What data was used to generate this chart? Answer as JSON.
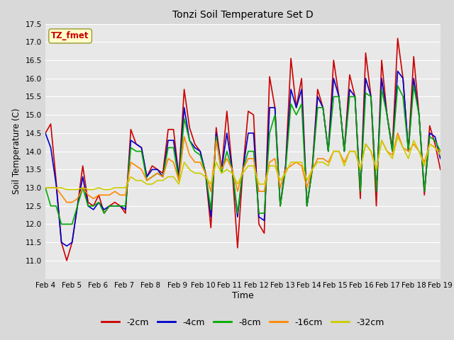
{
  "title": "Tonzi Soil Temperature Set D",
  "xlabel": "Time",
  "ylabel": "Soil Temperature (C)",
  "ylim": [
    10.5,
    17.5
  ],
  "yticks": [
    11.0,
    11.5,
    12.0,
    12.5,
    13.0,
    13.5,
    14.0,
    14.5,
    15.0,
    15.5,
    16.0,
    16.5,
    17.0,
    17.5
  ],
  "legend_labels": [
    "-2cm",
    "-4cm",
    "-8cm",
    "-16cm",
    "-32cm"
  ],
  "legend_colors": [
    "#cc0000",
    "#0000cc",
    "#00aa00",
    "#ff8800",
    "#cccc00"
  ],
  "annotation_text": "TZ_fmet",
  "annotation_color": "#cc0000",
  "annotation_bg": "#ffffcc",
  "fig_bg": "#d9d9d9",
  "plot_bg": "#e8e8e8",
  "xtick_labels": [
    "Feb 4",
    "Feb 5",
    "Feb 6",
    "Feb 7",
    "Feb 8",
    "Feb 9",
    "Feb 10",
    "Feb 11",
    "Feb 12",
    "Feb 13",
    "Feb 14",
    "Feb 15",
    "Feb 16",
    "Feb 17",
    "Feb 18",
    "Feb 19"
  ],
  "series": {
    "cm2": [
      14.5,
      14.75,
      13.2,
      11.5,
      11.0,
      11.5,
      12.5,
      13.6,
      12.6,
      12.5,
      12.8,
      12.3,
      12.5,
      12.6,
      12.5,
      12.3,
      14.6,
      14.2,
      14.1,
      13.3,
      13.6,
      13.5,
      13.4,
      14.6,
      14.6,
      13.3,
      15.7,
      14.65,
      14.2,
      14.0,
      13.4,
      11.9,
      14.65,
      13.5,
      15.1,
      13.5,
      11.35,
      13.5,
      15.1,
      15.0,
      12.0,
      11.75,
      16.05,
      15.2,
      12.5,
      13.6,
      16.55,
      15.2,
      16.0,
      12.5,
      13.55,
      15.7,
      15.2,
      14.0,
      16.5,
      15.5,
      14.0,
      16.1,
      15.5,
      12.7,
      16.7,
      15.5,
      12.5,
      16.5,
      15.0,
      14.1,
      17.1,
      16.0,
      14.0,
      16.6,
      15.0,
      12.8,
      14.7,
      14.2,
      13.5
    ],
    "cm4": [
      14.5,
      14.1,
      13.1,
      11.5,
      11.4,
      11.5,
      12.5,
      13.3,
      12.5,
      12.4,
      12.6,
      12.4,
      12.5,
      12.5,
      12.5,
      12.4,
      14.3,
      14.2,
      14.1,
      13.3,
      13.5,
      13.5,
      13.3,
      14.3,
      14.3,
      13.3,
      15.2,
      14.3,
      14.1,
      14.0,
      13.4,
      12.2,
      14.5,
      13.5,
      14.5,
      13.5,
      12.2,
      13.5,
      14.5,
      14.5,
      12.2,
      12.1,
      15.2,
      15.2,
      12.5,
      13.6,
      15.7,
      15.2,
      15.7,
      12.5,
      13.5,
      15.5,
      15.2,
      14.0,
      16.0,
      15.5,
      14.0,
      15.7,
      15.5,
      12.9,
      16.0,
      15.5,
      12.9,
      16.0,
      15.0,
      14.0,
      16.2,
      16.0,
      14.0,
      16.0,
      15.0,
      12.9,
      14.5,
      14.4,
      13.8
    ],
    "cm8": [
      13.0,
      12.5,
      12.5,
      12.0,
      12.0,
      12.0,
      12.5,
      13.0,
      12.5,
      12.5,
      12.6,
      12.3,
      12.5,
      12.5,
      12.5,
      12.5,
      14.1,
      14.0,
      14.0,
      13.2,
      13.3,
      13.4,
      13.3,
      14.1,
      14.1,
      13.2,
      14.9,
      14.3,
      14.0,
      13.9,
      13.4,
      12.4,
      14.4,
      13.4,
      14.0,
      13.5,
      12.3,
      13.5,
      14.0,
      14.0,
      12.3,
      12.3,
      14.5,
      15.0,
      12.5,
      13.5,
      15.3,
      15.0,
      15.3,
      12.5,
      13.5,
      15.2,
      15.2,
      14.0,
      15.5,
      15.5,
      14.0,
      15.5,
      15.5,
      12.9,
      15.6,
      15.5,
      12.9,
      15.7,
      15.0,
      14.0,
      15.8,
      15.5,
      14.0,
      15.8,
      15.0,
      12.9,
      14.4,
      14.3,
      14.0
    ],
    "cm16": [
      13.0,
      13.0,
      13.0,
      12.8,
      12.6,
      12.6,
      12.7,
      13.0,
      12.8,
      12.7,
      12.8,
      12.8,
      12.8,
      12.9,
      12.8,
      12.8,
      13.7,
      13.6,
      13.5,
      13.2,
      13.3,
      13.4,
      13.3,
      13.8,
      13.7,
      13.2,
      14.4,
      13.9,
      13.7,
      13.7,
      13.4,
      12.9,
      14.3,
      13.5,
      13.8,
      13.5,
      12.9,
      13.5,
      13.8,
      13.8,
      12.9,
      12.9,
      13.7,
      13.8,
      13.0,
      13.5,
      13.6,
      13.7,
      13.6,
      13.0,
      13.5,
      13.8,
      13.8,
      13.7,
      14.0,
      14.0,
      13.7,
      14.0,
      14.0,
      13.5,
      14.2,
      14.0,
      13.5,
      14.3,
      14.0,
      13.9,
      14.5,
      14.1,
      14.0,
      14.2,
      14.0,
      13.7,
      14.2,
      14.1,
      14.0
    ],
    "cm32": [
      13.0,
      13.0,
      13.0,
      13.0,
      12.95,
      12.95,
      12.95,
      13.0,
      12.95,
      12.95,
      13.0,
      12.95,
      12.95,
      13.0,
      13.0,
      13.0,
      13.3,
      13.2,
      13.2,
      13.1,
      13.1,
      13.2,
      13.2,
      13.3,
      13.3,
      13.1,
      13.7,
      13.5,
      13.4,
      13.4,
      13.3,
      13.1,
      13.7,
      13.4,
      13.5,
      13.4,
      13.1,
      13.4,
      13.6,
      13.6,
      13.1,
      13.1,
      13.6,
      13.6,
      13.2,
      13.4,
      13.7,
      13.7,
      13.7,
      13.2,
      13.5,
      13.7,
      13.7,
      13.6,
      14.0,
      14.0,
      13.6,
      14.0,
      14.0,
      13.5,
      14.2,
      14.0,
      13.5,
      14.3,
      14.0,
      13.8,
      14.4,
      14.1,
      13.8,
      14.3,
      14.0,
      13.6,
      14.2,
      14.1,
      13.9
    ]
  }
}
